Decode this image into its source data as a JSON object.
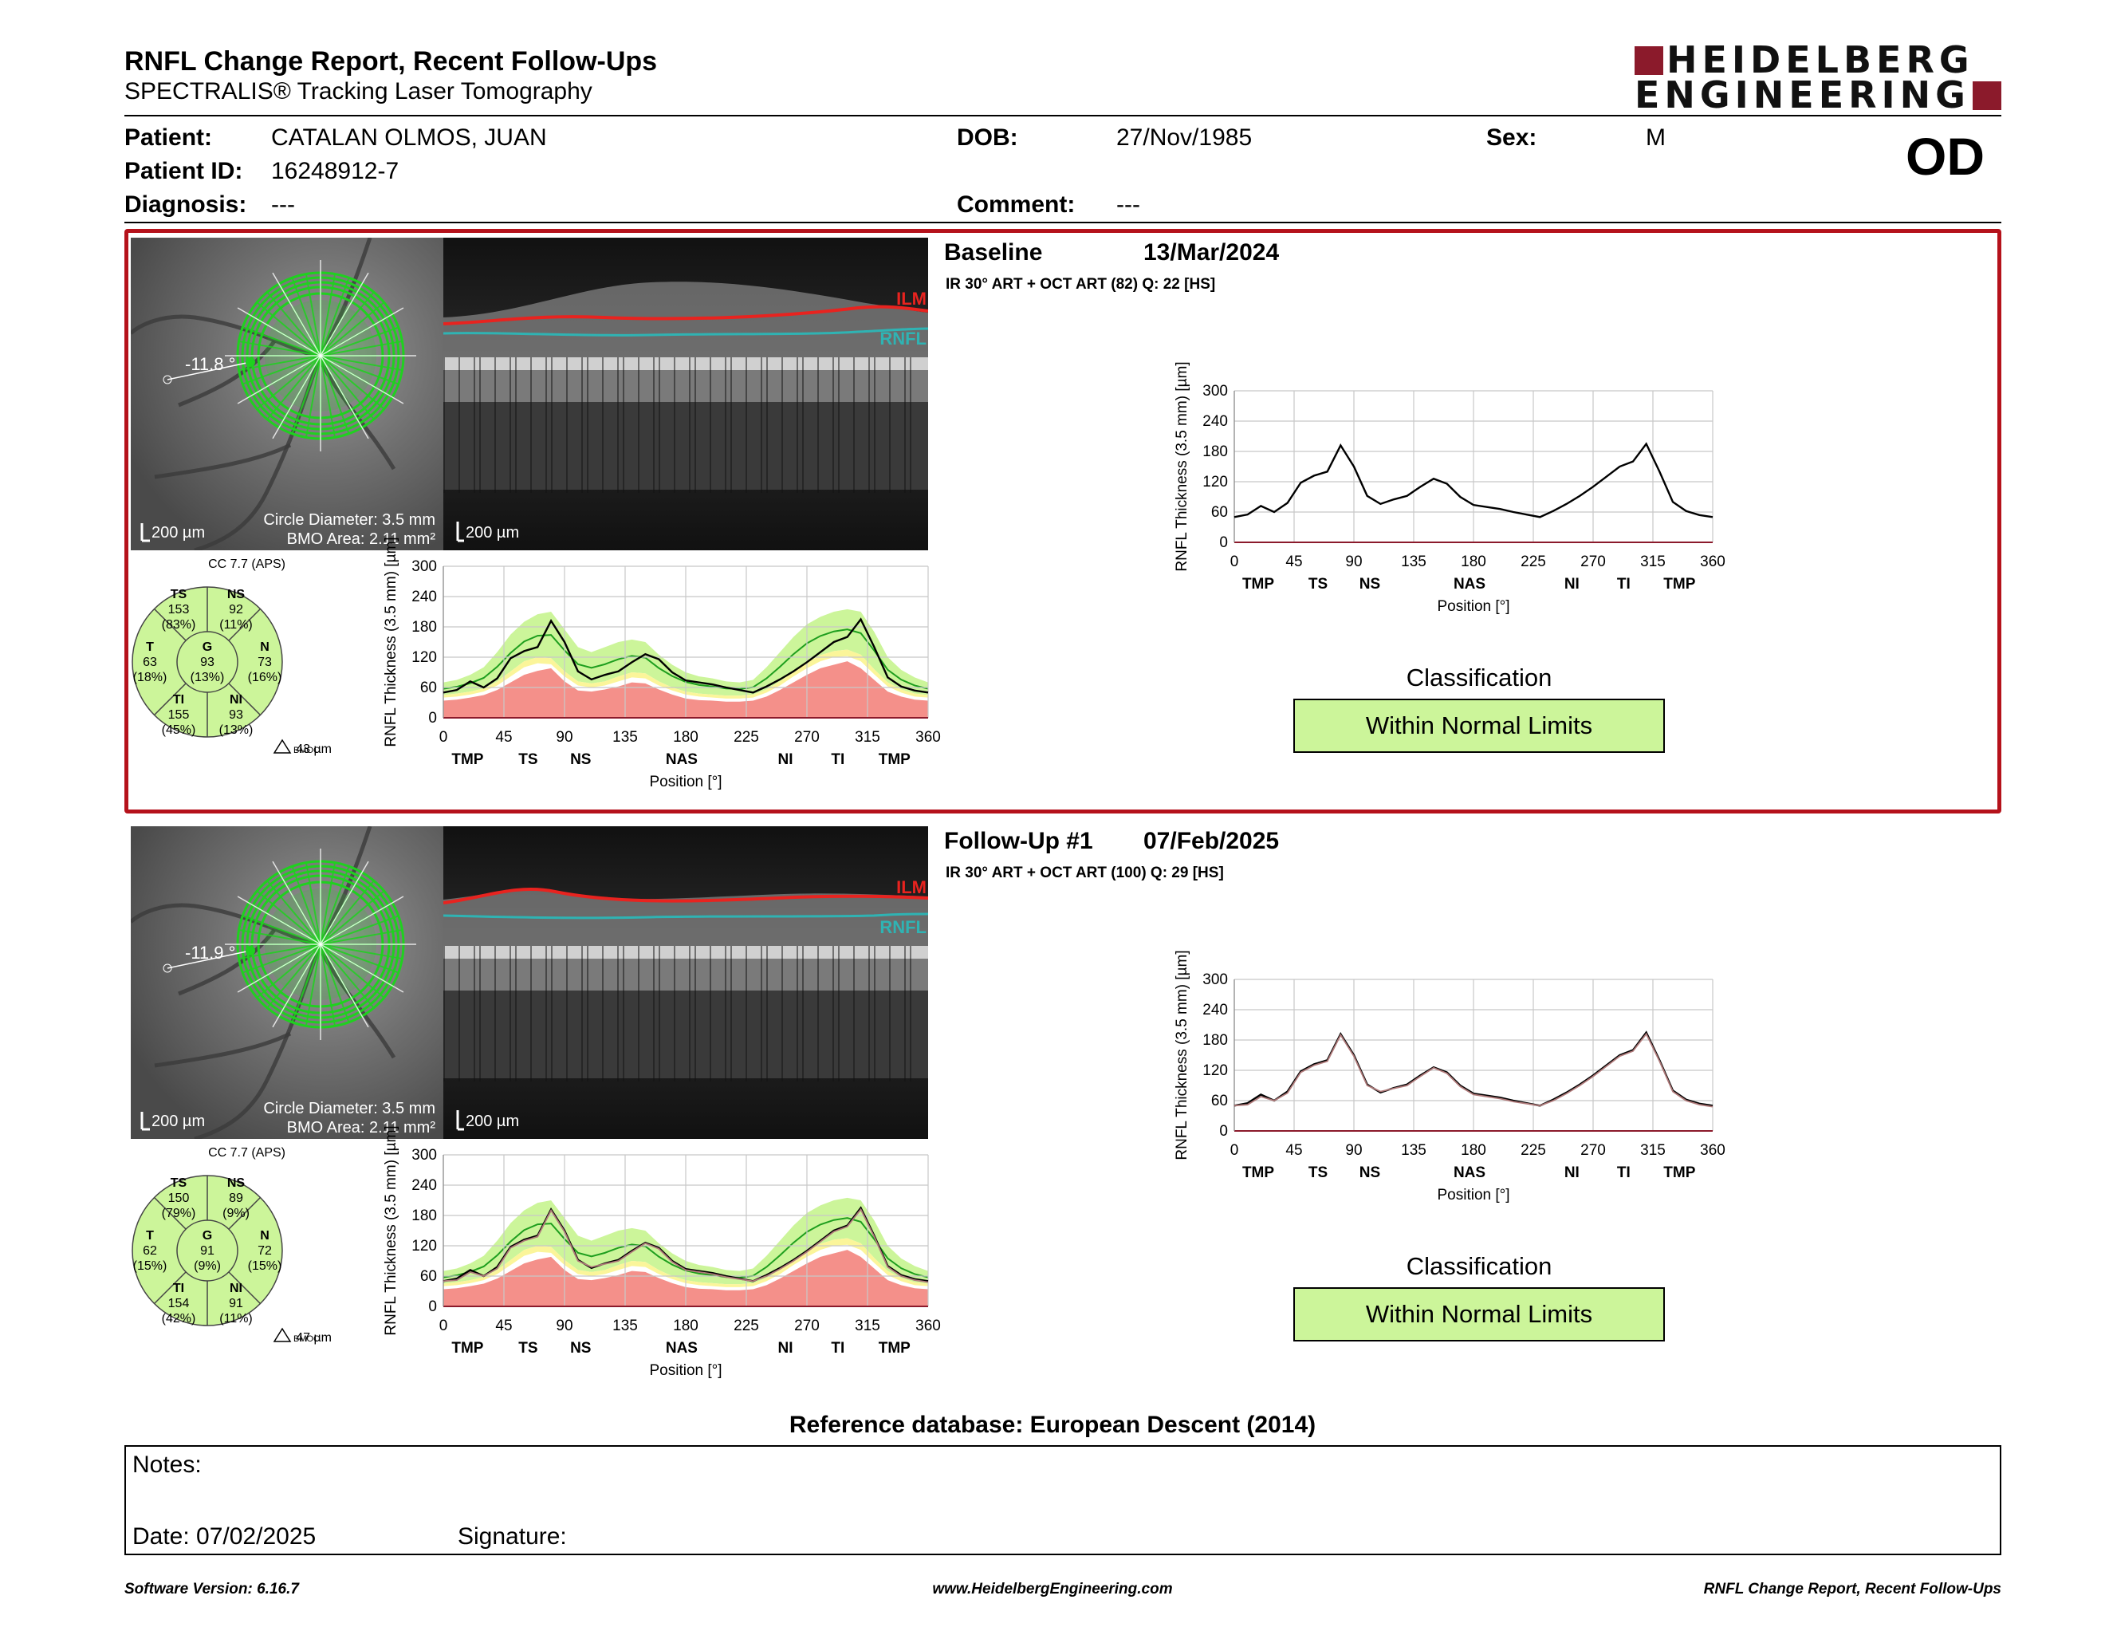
{
  "header": {
    "title": "RNFL Change Report, Recent Follow-Ups",
    "subtitle": "SPECTRALIS® Tracking Laser Tomography",
    "brand_line1": "HEIDELBERG",
    "brand_line2": "ENGINEERING",
    "eye": "OD"
  },
  "patient": {
    "name_label": "Patient:",
    "name": "CATALAN OLMOS, JUAN",
    "id_label": "Patient ID:",
    "id": "16248912-7",
    "diagnosis_label": "Diagnosis:",
    "diagnosis": "---",
    "dob_label": "DOB:",
    "dob": "27/Nov/1985",
    "comment_label": "Comment:",
    "comment": "---",
    "sex_label": "Sex:",
    "sex": "M"
  },
  "colors": {
    "baseline_border": "#b5121b",
    "brand": "#8b1a2b",
    "normal_fill": "#ccf59a",
    "borderline_fill": "#fbf59a",
    "outside_fill": "#f4908a",
    "ilm": "#e8231f",
    "rnfl": "#2fb3b3",
    "circle_green": "#1fd11f"
  },
  "exams": [
    {
      "title": "Baseline",
      "date": "13/Mar/2024",
      "info": "IR 30° ART + OCT ART (82) Q: 22 [HS]",
      "angle": "-11.8 °",
      "scale_fundus": "200 µm",
      "circle_diameter": "Circle Diameter: 3.5 mm",
      "bmo_area": "BMO Area: 2.11 mm²",
      "scale_oct": "200 µm",
      "ilm_label": "ILM",
      "rnfl_label": "RNFL",
      "cc": "CC 7.7 (APS)",
      "bmoc_label": "BMOC",
      "bmoc_value": "43 µm",
      "sectors": {
        "TS": {
          "label": "TS",
          "value": "153",
          "pct": "(83%)"
        },
        "NS": {
          "label": "NS",
          "value": "92",
          "pct": "(11%)"
        },
        "T": {
          "label": "T",
          "value": "63",
          "pct": "(18%)"
        },
        "G": {
          "label": "G",
          "value": "93",
          "pct": "(13%)"
        },
        "N": {
          "label": "N",
          "value": "73",
          "pct": "(16%)"
        },
        "TI": {
          "label": "TI",
          "value": "155",
          "pct": "(45%)"
        },
        "NI": {
          "label": "NI",
          "value": "93",
          "pct": "(13%)"
        }
      },
      "classification_title": "Classification",
      "classification": "Within Normal Limits"
    },
    {
      "title": "Follow-Up #1",
      "date": "07/Feb/2025",
      "info": "IR 30° ART + OCT ART (100) Q: 29 [HS]",
      "angle": "-11.9 °",
      "scale_fundus": "200 µm",
      "circle_diameter": "Circle Diameter: 3.5 mm",
      "bmo_area": "BMO Area: 2.11 mm²",
      "scale_oct": "200 µm",
      "ilm_label": "ILM",
      "rnfl_label": "RNFL",
      "cc": "CC 7.7 (APS)",
      "bmoc_label": "BMOC",
      "bmoc_value": "47 µm",
      "sectors": {
        "TS": {
          "label": "TS",
          "value": "150",
          "pct": "(79%)"
        },
        "NS": {
          "label": "NS",
          "value": "89",
          "pct": "(9%)"
        },
        "T": {
          "label": "T",
          "value": "62",
          "pct": "(15%)"
        },
        "G": {
          "label": "G",
          "value": "91",
          "pct": "(9%)"
        },
        "N": {
          "label": "N",
          "value": "72",
          "pct": "(15%)"
        },
        "TI": {
          "label": "TI",
          "value": "154",
          "pct": "(42%)"
        },
        "NI": {
          "label": "NI",
          "value": "91",
          "pct": "(11%)"
        }
      },
      "classification_title": "Classification",
      "classification": "Within Normal Limits"
    }
  ],
  "chart_data": [
    {
      "type": "line",
      "title": "",
      "xlabel": "Position [°]",
      "ylabel": "RNFL Thickness (3.5 mm) [µm]",
      "xlim": [
        0,
        360
      ],
      "ylim": [
        0,
        300
      ],
      "x_ticks": [
        0,
        45,
        90,
        135,
        180,
        225,
        270,
        315,
        360
      ],
      "y_ticks": [
        0,
        60,
        120,
        180,
        240,
        300
      ],
      "sector_ticks": [
        {
          "x": 18,
          "label": "TMP"
        },
        {
          "x": 63,
          "label": "TS"
        },
        {
          "x": 102,
          "label": "NS"
        },
        {
          "x": 177,
          "label": "NAS"
        },
        {
          "x": 254,
          "label": "NI"
        },
        {
          "x": 293,
          "label": "TI"
        },
        {
          "x": 335,
          "label": "TMP"
        }
      ],
      "grid": true,
      "x": [
        0,
        10,
        20,
        30,
        40,
        50,
        60,
        70,
        80,
        90,
        100,
        110,
        120,
        130,
        140,
        150,
        160,
        170,
        180,
        190,
        200,
        210,
        220,
        230,
        240,
        250,
        260,
        270,
        280,
        290,
        300,
        310,
        320,
        330,
        340,
        350,
        360
      ],
      "series": [
        {
          "values": [
            50,
            55,
            72,
            60,
            78,
            118,
            132,
            140,
            192,
            150,
            92,
            76,
            85,
            92,
            110,
            126,
            116,
            90,
            74,
            70,
            66,
            60,
            55,
            50,
            62,
            76,
            92,
            110,
            130,
            150,
            160,
            195,
            140,
            80,
            62,
            54,
            50
          ]
        },
        {
          "values": [
            50,
            52,
            68,
            60,
            75,
            116,
            130,
            138,
            190,
            148,
            90,
            78,
            84,
            90,
            108,
            125,
            114,
            88,
            72,
            68,
            64,
            58,
            54,
            50,
            60,
            74,
            90,
            108,
            128,
            148,
            158,
            192,
            138,
            78,
            60,
            52,
            48
          ]
        }
      ],
      "normative_bands": {
        "normal_upper": [
          70,
          75,
          85,
          100,
          130,
          165,
          190,
          205,
          210,
          175,
          140,
          130,
          140,
          150,
          155,
          150,
          125,
          105,
          90,
          82,
          78,
          72,
          70,
          75,
          100,
          130,
          160,
          185,
          200,
          210,
          215,
          210,
          170,
          120,
          95,
          80,
          70
        ],
        "normal_lower": [
          45,
          48,
          52,
          58,
          72,
          92,
          112,
          120,
          118,
          92,
          72,
          68,
          72,
          82,
          90,
          88,
          72,
          60,
          52,
          48,
          46,
          44,
          44,
          46,
          56,
          72,
          92,
          110,
          124,
          132,
          135,
          125,
          96,
          70,
          56,
          48,
          45
        ],
        "borderline_lower": [
          40,
          42,
          46,
          52,
          64,
          82,
          100,
          108,
          106,
          82,
          64,
          60,
          64,
          72,
          80,
          78,
          64,
          54,
          46,
          42,
          40,
          38,
          38,
          40,
          50,
          64,
          82,
          98,
          112,
          120,
          122,
          112,
          86,
          62,
          50,
          42,
          40
        ],
        "outside_lower": [
          34,
          36,
          40,
          45,
          55,
          70,
          85,
          93,
          98,
          72,
          54,
          52,
          56,
          62,
          70,
          68,
          56,
          46,
          38,
          35,
          34,
          32,
          32,
          34,
          42,
          55,
          70,
          85,
          98,
          105,
          112,
          98,
          75,
          52,
          42,
          36,
          34
        ]
      }
    }
  ],
  "reference_db": "Reference database: European Descent (2014)",
  "notes": {
    "notes_label": "Notes:",
    "date_label": "Date: 07/02/2025",
    "signature_label": "Signature:"
  },
  "footer": {
    "left": "Software Version: 6.16.7",
    "center": "www.HeidelbergEngineering.com",
    "right": "RNFL Change Report, Recent Follow-Ups"
  }
}
